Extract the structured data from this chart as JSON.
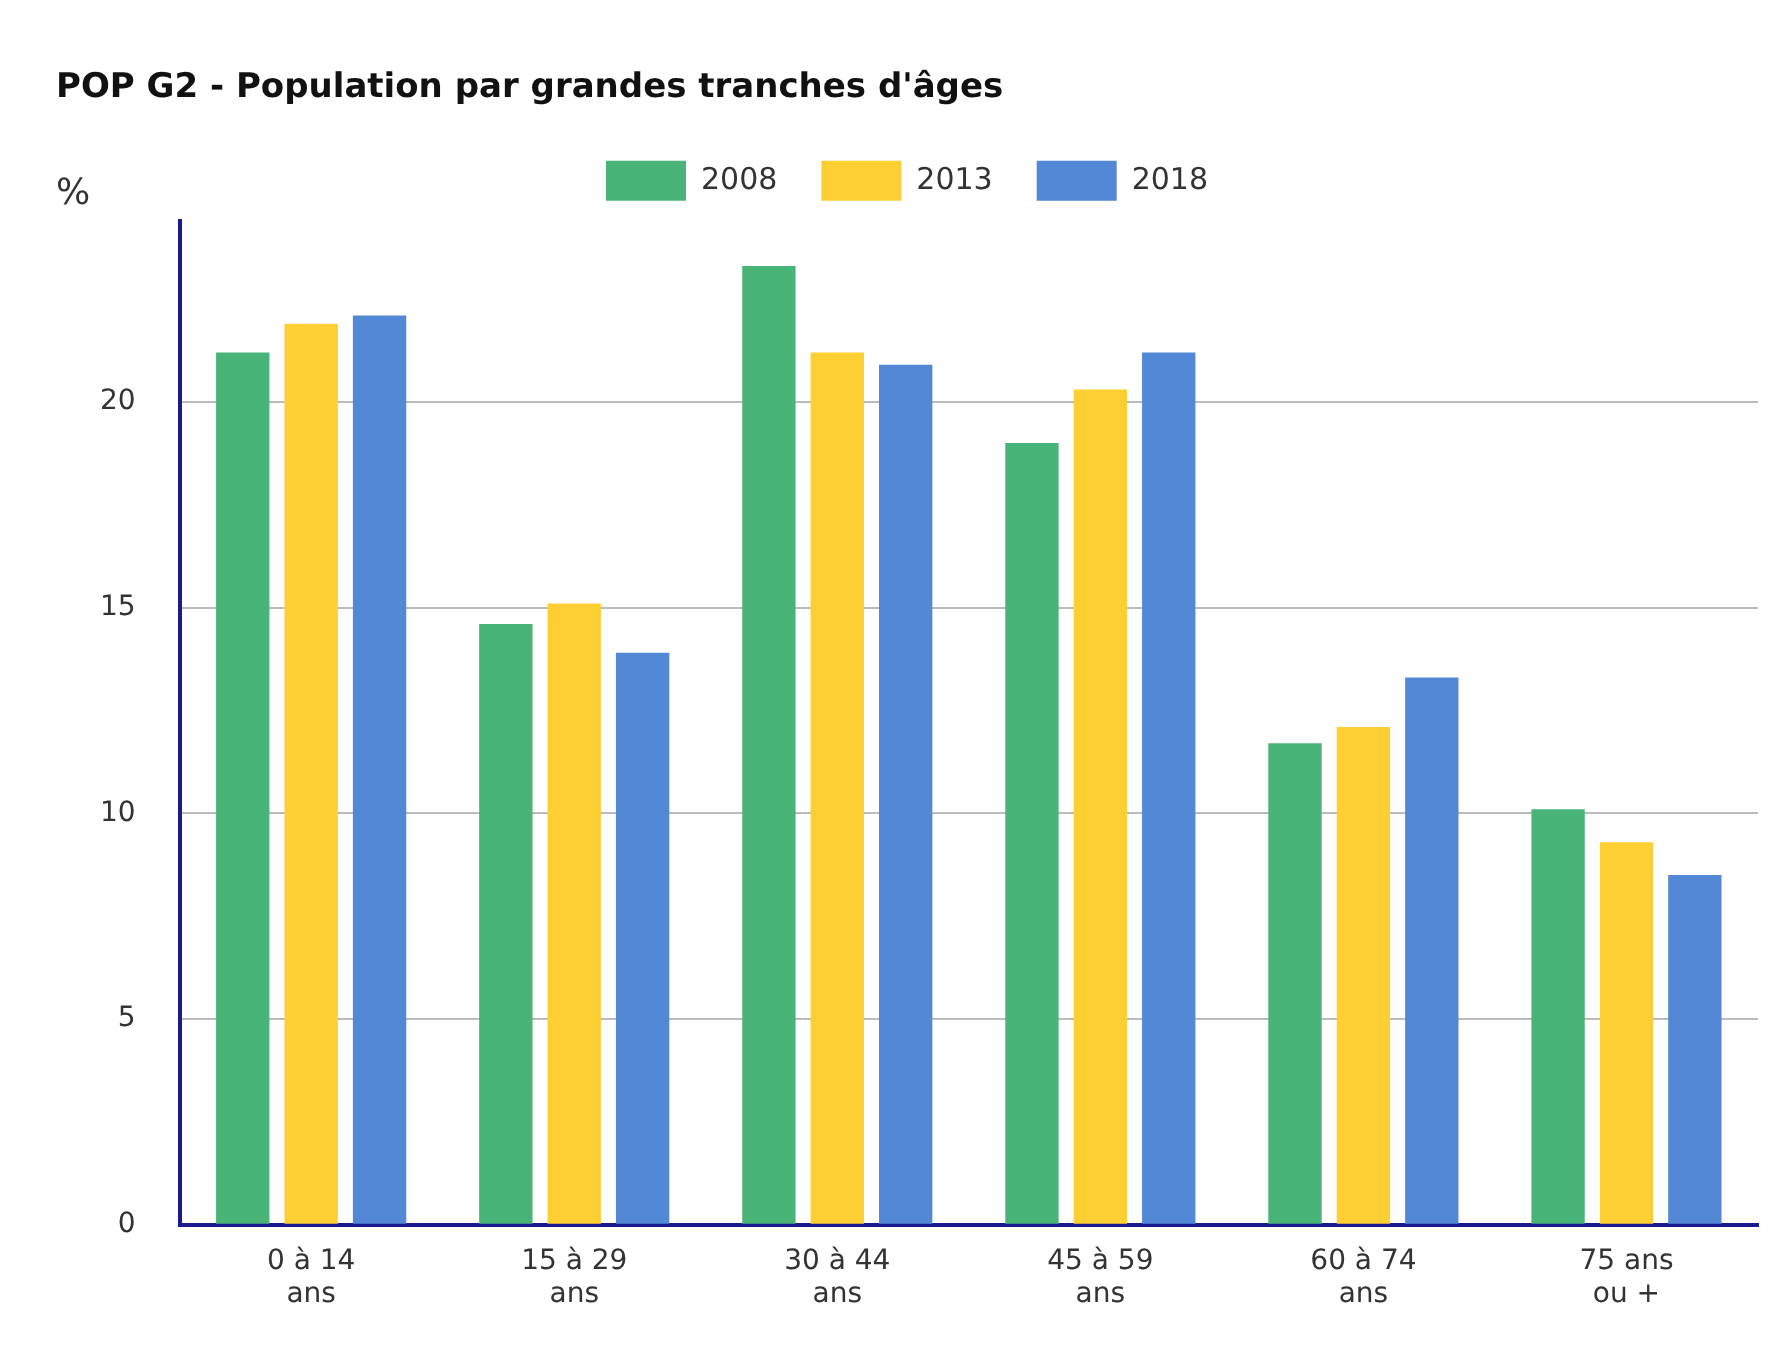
{
  "chart_data": {
    "type": "bar",
    "title": "POP G2 - Population par grandes tranches d'âges",
    "ylabel": "%",
    "categories": [
      "0 à 14 ans",
      "15 à 29 ans",
      "30 à 44 ans",
      "45 à 59 ans",
      "60 à 74 ans",
      "75 ans ou +"
    ],
    "series": [
      {
        "name": "2008",
        "color": "#48b478",
        "values": [
          21.2,
          14.6,
          23.3,
          19.0,
          11.7,
          10.1
        ]
      },
      {
        "name": "2013",
        "color": "#fdcf33",
        "values": [
          21.9,
          15.1,
          21.2,
          20.3,
          12.1,
          9.3
        ]
      },
      {
        "name": "2018",
        "color": "#5288d6",
        "values": [
          22.1,
          13.9,
          20.9,
          21.2,
          13.3,
          8.5
        ]
      }
    ],
    "ylim": [
      0,
      24.4
    ],
    "yticks": [
      0,
      5,
      10,
      15,
      20
    ],
    "grid": "y",
    "legend": "top"
  }
}
